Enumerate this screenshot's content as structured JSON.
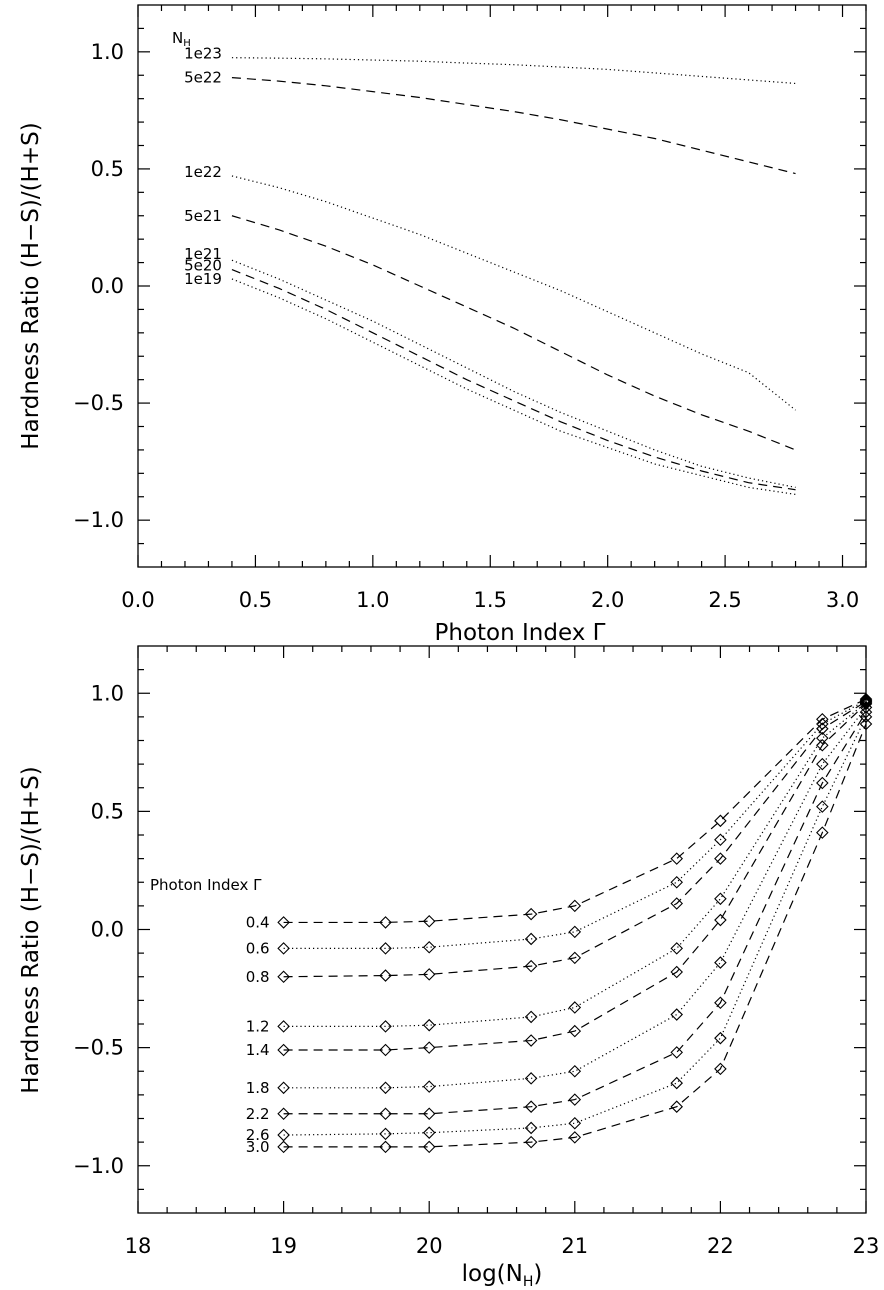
{
  "chart_data": [
    {
      "type": "line",
      "xlabel": "Photon Index Γ",
      "ylabel": "Hardness Ratio (H−S)/(H+S)",
      "xlim": [
        0.0,
        3.1
      ],
      "ylim": [
        -1.2,
        1.2
      ],
      "x_ticks": [
        "0.0",
        "0.5",
        "1.0",
        "1.5",
        "2.0",
        "2.5",
        "3.0"
      ],
      "y_ticks": [
        "1.0",
        "0.5",
        "0.0",
        "−0.5",
        "−1.0"
      ],
      "legend_title": "N_H",
      "x": [
        0.4,
        0.6,
        0.8,
        1.0,
        1.2,
        1.4,
        1.6,
        1.8,
        2.0,
        2.2,
        2.4,
        2.6,
        2.8
      ],
      "series": [
        {
          "name": "1e23",
          "style": "dotted",
          "values": [
            0.975,
            0.973,
            0.97,
            0.965,
            0.96,
            0.952,
            0.945,
            0.935,
            0.925,
            0.91,
            0.895,
            0.88,
            0.865
          ]
        },
        {
          "name": "5e22",
          "style": "dashed",
          "values": [
            0.89,
            0.875,
            0.855,
            0.83,
            0.805,
            0.775,
            0.745,
            0.71,
            0.67,
            0.63,
            0.58,
            0.53,
            0.48
          ]
        },
        {
          "name": "1e22",
          "style": "dotted",
          "values": [
            0.47,
            0.42,
            0.36,
            0.29,
            0.22,
            0.14,
            0.06,
            -0.02,
            -0.11,
            -0.2,
            -0.29,
            -0.37,
            -0.53
          ]
        },
        {
          "name": "5e21",
          "style": "dashed",
          "values": [
            0.3,
            0.24,
            0.17,
            0.09,
            0.0,
            -0.09,
            -0.18,
            -0.28,
            -0.38,
            -0.47,
            -0.55,
            -0.62,
            -0.7
          ]
        },
        {
          "name": "1e21",
          "style": "dotted",
          "values": [
            0.11,
            0.03,
            -0.06,
            -0.15,
            -0.25,
            -0.35,
            -0.45,
            -0.54,
            -0.62,
            -0.7,
            -0.77,
            -0.82,
            -0.86
          ]
        },
        {
          "name": "5e20",
          "style": "dashed",
          "values": [
            0.07,
            -0.01,
            -0.1,
            -0.2,
            -0.3,
            -0.4,
            -0.49,
            -0.58,
            -0.66,
            -0.73,
            -0.79,
            -0.84,
            -0.87
          ]
        },
        {
          "name": "1e19",
          "style": "dotted",
          "values": [
            0.03,
            -0.05,
            -0.14,
            -0.24,
            -0.34,
            -0.44,
            -0.53,
            -0.62,
            -0.69,
            -0.76,
            -0.81,
            -0.86,
            -0.89
          ]
        }
      ]
    },
    {
      "type": "line",
      "xlabel": "log(N_H)",
      "ylabel": "Hardness Ratio (H−S)/(H+S)",
      "xlim": [
        18,
        23
      ],
      "ylim": [
        -1.2,
        1.2
      ],
      "x_ticks": [
        "18",
        "19",
        "20",
        "21",
        "22",
        "23"
      ],
      "y_ticks": [
        "1.0",
        "0.5",
        "0.0",
        "−0.5",
        "−1.0"
      ],
      "legend_title": "Photon Index Γ",
      "x": [
        19.0,
        19.7,
        20.0,
        20.7,
        21.0,
        21.7,
        22.0,
        22.7,
        23.0
      ],
      "series": [
        {
          "name": "0.4",
          "style": "dashed",
          "values": [
            0.03,
            0.03,
            0.035,
            0.065,
            0.1,
            0.3,
            0.46,
            0.89,
            0.975
          ]
        },
        {
          "name": "0.6",
          "style": "dotted",
          "values": [
            -0.08,
            -0.08,
            -0.075,
            -0.04,
            -0.01,
            0.2,
            0.38,
            0.87,
            0.97
          ]
        },
        {
          "name": "0.8",
          "style": "dashed",
          "values": [
            -0.2,
            -0.195,
            -0.19,
            -0.155,
            -0.12,
            0.11,
            0.3,
            0.85,
            0.965
          ]
        },
        {
          "name": "1.2",
          "style": "dotted",
          "values": [
            -0.41,
            -0.41,
            -0.405,
            -0.37,
            -0.33,
            -0.08,
            0.13,
            0.81,
            0.96
          ]
        },
        {
          "name": "1.4",
          "style": "dashed",
          "values": [
            -0.51,
            -0.51,
            -0.5,
            -0.47,
            -0.43,
            -0.18,
            0.04,
            0.78,
            0.955
          ]
        },
        {
          "name": "1.8",
          "style": "dotted",
          "values": [
            -0.67,
            -0.67,
            -0.665,
            -0.63,
            -0.6,
            -0.36,
            -0.14,
            0.7,
            0.94
          ]
        },
        {
          "name": "2.2",
          "style": "dashed",
          "values": [
            -0.78,
            -0.78,
            -0.78,
            -0.75,
            -0.72,
            -0.52,
            -0.31,
            0.62,
            0.92
          ]
        },
        {
          "name": "2.6",
          "style": "dotted",
          "values": [
            -0.87,
            -0.865,
            -0.86,
            -0.84,
            -0.82,
            -0.65,
            -0.46,
            0.52,
            0.9
          ]
        },
        {
          "name": "3.0",
          "style": "dashed",
          "values": [
            -0.92,
            -0.92,
            -0.92,
            -0.9,
            -0.88,
            -0.75,
            -0.59,
            0.41,
            0.87
          ]
        }
      ]
    }
  ]
}
